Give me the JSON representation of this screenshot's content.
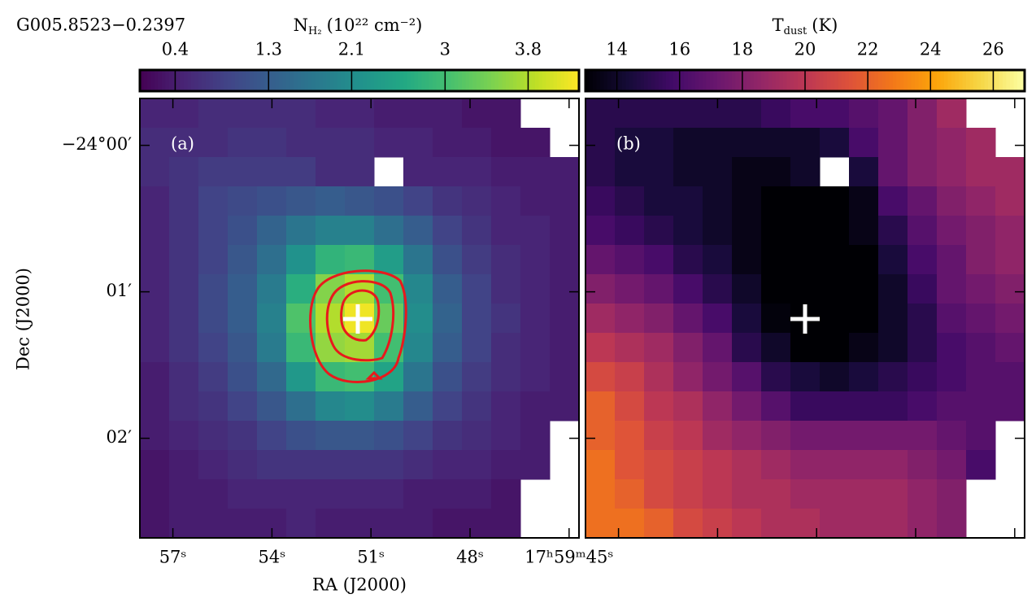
{
  "chart_data": [
    {
      "type": "heatmap",
      "title": "G005.8523−0.2397",
      "panel_label": "(a)",
      "colorbar_label": {
        "symbol": "N",
        "subscript": "H₂",
        "unit": "(10²² cm⁻²)"
      },
      "colormap": "viridis",
      "clim": [
        0.06,
        4.29
      ],
      "cticks": [
        0.4,
        1.3,
        2.1,
        3.0,
        3.8
      ],
      "xlabel": "RA (J2000)",
      "ylabel": "Dec (J2000)",
      "xlim": [
        58.0,
        44.7
      ],
      "xticks": [
        {
          "value": 57,
          "label": "57ˢ"
        },
        {
          "value": 54,
          "label": "54ˢ"
        },
        {
          "value": 51,
          "label": "51ˢ"
        },
        {
          "value": 48,
          "label": "48ˢ"
        },
        {
          "value": 45,
          "label": "17ʰ59ᵐ45ˢ"
        }
      ],
      "ylim": [
        2.68,
        -0.32
      ],
      "yticks": [
        {
          "value": 0,
          "label": "−24°00′"
        },
        {
          "value": 1,
          "label": "01′"
        },
        {
          "value": 2,
          "label": "02′"
        }
      ],
      "values": [
        [
          0.5,
          0.5,
          0.6,
          0.6,
          0.6,
          0.6,
          0.5,
          0.5,
          0.4,
          0.4,
          0.4,
          0.3,
          0.3,
          null,
          null
        ],
        [
          0.6,
          0.6,
          0.6,
          0.7,
          0.7,
          0.6,
          0.6,
          0.6,
          0.5,
          0.5,
          0.4,
          0.4,
          0.3,
          0.3,
          null
        ],
        [
          0.6,
          0.7,
          0.8,
          0.8,
          0.8,
          0.8,
          0.6,
          0.6,
          null,
          0.5,
          0.5,
          0.5,
          0.4,
          0.4,
          0.4
        ],
        [
          0.5,
          0.7,
          0.9,
          1.0,
          1.1,
          1.2,
          1.3,
          1.2,
          1.1,
          0.9,
          0.7,
          0.6,
          0.5,
          0.4,
          0.4
        ],
        [
          0.5,
          0.7,
          0.9,
          1.1,
          1.4,
          1.7,
          1.9,
          1.9,
          1.6,
          1.3,
          0.9,
          0.7,
          0.5,
          0.5,
          0.4
        ],
        [
          0.5,
          0.7,
          0.9,
          1.2,
          1.6,
          2.2,
          2.8,
          2.9,
          2.4,
          1.7,
          1.1,
          0.8,
          0.6,
          0.5,
          0.4
        ],
        [
          0.5,
          0.7,
          1.0,
          1.3,
          1.8,
          2.7,
          3.5,
          3.8,
          3.0,
          2.0,
          1.3,
          0.9,
          0.6,
          0.5,
          0.4
        ],
        [
          0.5,
          0.7,
          1.0,
          1.3,
          1.9,
          3.1,
          3.8,
          4.2,
          3.3,
          2.1,
          1.4,
          0.9,
          0.7,
          0.5,
          0.4
        ],
        [
          0.5,
          0.7,
          0.9,
          1.2,
          1.8,
          2.9,
          3.6,
          3.7,
          3.0,
          2.0,
          1.3,
          0.9,
          0.6,
          0.5,
          0.4
        ],
        [
          0.4,
          0.6,
          0.8,
          1.1,
          1.5,
          2.3,
          2.9,
          3.0,
          2.5,
          1.7,
          1.1,
          0.8,
          0.6,
          0.5,
          0.4
        ],
        [
          0.4,
          0.6,
          0.7,
          0.9,
          1.2,
          1.6,
          2.0,
          2.1,
          1.8,
          1.3,
          0.9,
          0.7,
          0.5,
          0.4,
          0.4
        ],
        [
          0.4,
          0.5,
          0.6,
          0.7,
          0.9,
          1.1,
          1.2,
          1.2,
          1.1,
          0.9,
          0.7,
          0.6,
          0.5,
          0.4,
          null
        ],
        [
          0.3,
          0.4,
          0.5,
          0.6,
          0.7,
          0.7,
          0.7,
          0.7,
          0.7,
          0.6,
          0.5,
          0.5,
          0.4,
          0.4,
          null
        ],
        [
          0.3,
          0.4,
          0.4,
          0.5,
          0.5,
          0.5,
          0.5,
          0.5,
          0.5,
          0.4,
          0.4,
          0.4,
          0.3,
          null,
          null
        ],
        [
          0.3,
          0.4,
          0.4,
          0.4,
          0.4,
          0.5,
          0.4,
          0.4,
          0.4,
          0.4,
          0.3,
          0.3,
          0.3,
          null,
          null
        ]
      ]
    },
    {
      "type": "heatmap",
      "panel_label": "(b)",
      "colorbar_label": {
        "symbol": "T",
        "subscript": "dust",
        "unit": "(K)"
      },
      "colormap": "inferno",
      "clim": [
        13,
        27
      ],
      "cticks": [
        14,
        16,
        18,
        20,
        22,
        24,
        26
      ],
      "values": [
        [
          15,
          15,
          15,
          15,
          15,
          15,
          15.5,
          16,
          16,
          16.5,
          17,
          18,
          19,
          null,
          null
        ],
        [
          15,
          14.5,
          14.5,
          14,
          14,
          14,
          14,
          14,
          14.5,
          16,
          17,
          18,
          18.5,
          19,
          null
        ],
        [
          15,
          14.5,
          14.5,
          14,
          14,
          13.5,
          13.5,
          14,
          null,
          14.5,
          17,
          18,
          18.5,
          19,
          19
        ],
        [
          15.5,
          15,
          14.5,
          14.5,
          14,
          13.5,
          13,
          13,
          13,
          13.5,
          16,
          17,
          18,
          18.5,
          19
        ],
        [
          16,
          15.5,
          15,
          14.5,
          14,
          13.5,
          13,
          13,
          13,
          13.5,
          15,
          16.5,
          17.5,
          18,
          18.5
        ],
        [
          17,
          16.5,
          16,
          15,
          14.5,
          13.5,
          13,
          13,
          13,
          13,
          14.5,
          16,
          17,
          18,
          18.5
        ],
        [
          18,
          17.5,
          17,
          16,
          15,
          14,
          13,
          13,
          13,
          13,
          14,
          15.5,
          17,
          17.5,
          18
        ],
        [
          19,
          18.5,
          18,
          17,
          16,
          14.5,
          13.2,
          13,
          13,
          13,
          14,
          15,
          16.5,
          17,
          17.5
        ],
        [
          20,
          19.5,
          19,
          18,
          17,
          15,
          14,
          13,
          13,
          13.5,
          14,
          15,
          16,
          16.5,
          17
        ],
        [
          21,
          20.5,
          19.5,
          18.5,
          17.5,
          16.5,
          15,
          14.5,
          14,
          14.5,
          15,
          15.5,
          16,
          16.5,
          16.5
        ],
        [
          22,
          21,
          20,
          19.5,
          18.5,
          17.5,
          16.5,
          15.5,
          15.5,
          15.5,
          15.5,
          16,
          16.5,
          16.5,
          16.5
        ],
        [
          22,
          21.5,
          20.5,
          20,
          19,
          18.5,
          18,
          17.5,
          17.5,
          17.5,
          17.5,
          17.5,
          17,
          16.5,
          null
        ],
        [
          22.5,
          21.5,
          21,
          20.5,
          20,
          19.5,
          19,
          18.5,
          18.5,
          18.5,
          18.5,
          18,
          17.5,
          16,
          null
        ],
        [
          22.5,
          22,
          21,
          20.5,
          20,
          19.5,
          19.5,
          19,
          19,
          19,
          19,
          18.5,
          18,
          null,
          null
        ],
        [
          22.5,
          22.5,
          22,
          21,
          20.5,
          20,
          19.5,
          19.5,
          19,
          19,
          19,
          18.5,
          18,
          null,
          null
        ]
      ]
    }
  ]
}
